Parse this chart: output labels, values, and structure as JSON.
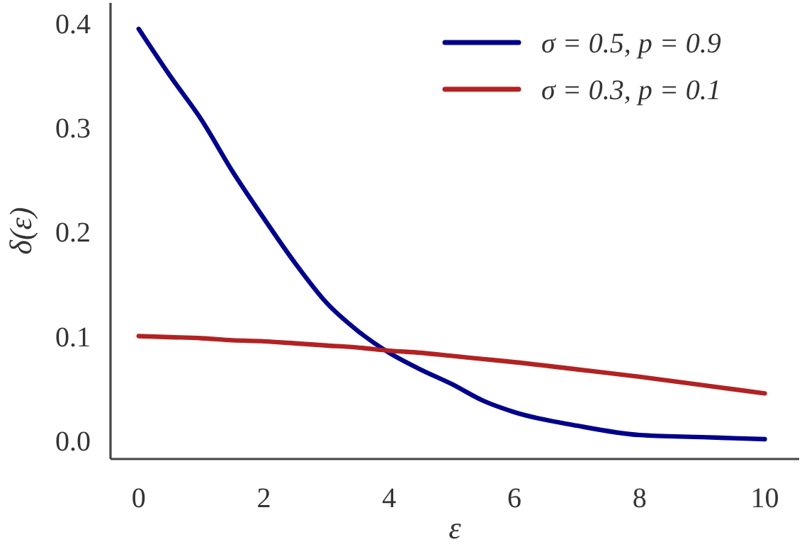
{
  "chart_data": {
    "type": "line",
    "xlabel": "ε",
    "ylabel": "δ(ε)",
    "x": [
      0,
      0.5,
      1,
      1.5,
      2,
      2.5,
      3,
      3.5,
      4,
      4.5,
      5,
      5.5,
      6,
      7,
      8,
      9,
      10
    ],
    "xlim": [
      -0.45,
      10.55
    ],
    "ylim": [
      -0.018,
      0.42
    ],
    "xticks": [
      0,
      2,
      4,
      6,
      8,
      10
    ],
    "yticks": [
      {
        "value": 0,
        "label": "0.0"
      },
      0.1,
      0.2,
      0.3,
      0.4
    ],
    "grid": false,
    "legend": "top right",
    "line_style": "solid",
    "marker": "none",
    "series": [
      {
        "name": "σ = 0.5, p = 0.9",
        "color": "#00008b",
        "values": [
          0.395,
          0.35,
          0.308,
          0.258,
          0.213,
          0.17,
          0.132,
          0.105,
          0.084,
          0.068,
          0.054,
          0.038,
          0.027,
          0.014,
          0.005,
          0.003,
          0.001
        ]
      },
      {
        "name": "σ = 0.3, p = 0.1",
        "color": "#b22222",
        "values": [
          0.1,
          0.099,
          0.098,
          0.096,
          0.095,
          0.093,
          0.091,
          0.089,
          0.086,
          0.084,
          0.081,
          0.078,
          0.075,
          0.068,
          0.061,
          0.053,
          0.045
        ]
      }
    ]
  }
}
